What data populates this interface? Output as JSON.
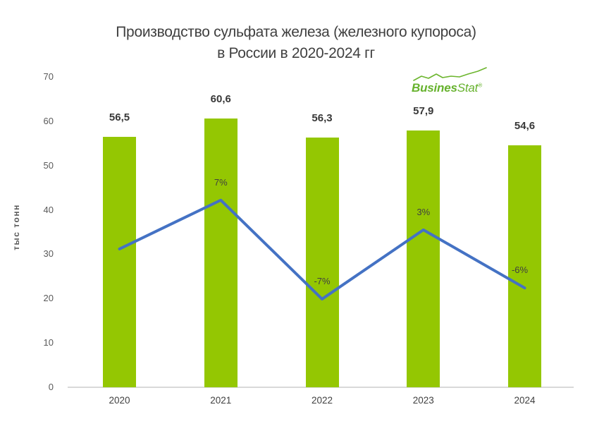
{
  "chart": {
    "title_line1": "Производство сульфата железа (железного купороса)",
    "title_line2": "в России в 2020-2024 гг",
    "ylabel": "тыс тонн"
  },
  "logo": {
    "text_bold": "Busines",
    "text_light": "Stat",
    "registered": "®",
    "color": "#66B22D"
  },
  "chart_data": {
    "type": "bar",
    "overlay": "line",
    "title": "Производство сульфата железа (железного купороса) в России в 2020-2024 гг",
    "xlabel": "",
    "ylabel": "тыс тонн",
    "categories": [
      "2020",
      "2021",
      "2022",
      "2023",
      "2024"
    ],
    "bar_values": [
      56.5,
      60.6,
      56.3,
      57.9,
      54.6
    ],
    "bar_value_labels": [
      "56,5",
      "60,6",
      "56,3",
      "57,9",
      "54,6"
    ],
    "line_percent_values": [
      null,
      7,
      -7,
      3,
      -6
    ],
    "line_percent_labels": [
      "",
      "7%",
      "-7%",
      "3%",
      "-6%"
    ],
    "line_y_on_primary_axis": [
      31.2,
      42.2,
      19.9,
      35.5,
      22.4
    ],
    "ylim": [
      0,
      70
    ],
    "yticks": [
      0,
      10,
      20,
      30,
      40,
      50,
      60,
      70
    ],
    "grid": false,
    "legend_position": "none",
    "bar_color": "#94C702",
    "line_color": "#4472C4",
    "axis_color": "#D9D9D9"
  }
}
